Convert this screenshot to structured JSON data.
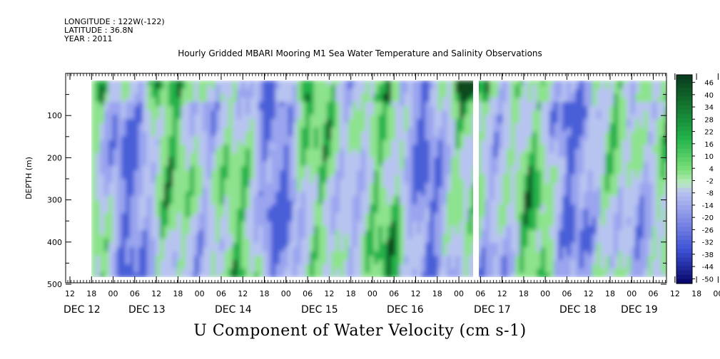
{
  "header": {
    "longitude": "LONGITUDE : 122W(-122)",
    "latitude": "LATITUDE : 36.8N",
    "year": "YEAR : 2011"
  },
  "chart_data": {
    "type": "heatmap",
    "title": "Hourly Gridded MBARI Mooring M1 Sea Water Temperature and Salinity Observations",
    "bottom_title": "U Component of Water Velocity (cm s-1)",
    "ylabel": "DEPTH (m)",
    "y_range": [
      500,
      0
    ],
    "y_ticks": [
      "100",
      "200",
      "300",
      "400",
      "500"
    ],
    "x_hour_ticks": [
      "12",
      "18",
      "00",
      "06",
      "12",
      "18",
      "00",
      "06",
      "12",
      "18",
      "00",
      "06",
      "12",
      "18",
      "00",
      "06",
      "12",
      "18",
      "00",
      "06",
      "12",
      "18",
      "00",
      "06",
      "12",
      "18",
      "00",
      "06",
      "12",
      "18",
      "00",
      "06"
    ],
    "x_date_labels": [
      "DEC 12",
      "DEC 13",
      "DEC 14",
      "DEC 15",
      "DEC 16",
      "DEC 17",
      "DEC 18",
      "DEC 19"
    ],
    "colorbar": {
      "labels": [
        "46",
        "40",
        "34",
        "28",
        "22",
        "16",
        "10",
        "4",
        "-2",
        "-8",
        "-14",
        "-20",
        "-26",
        "-32",
        "-38",
        "-44",
        "-50"
      ],
      "colors": {
        "strong_positive": "#0b4a1e",
        "positive": "#22b24a",
        "weak_positive": "#8de38d",
        "zero": "#b8c4f0",
        "weak_negative": "#9aa4ef",
        "negative": "#4a5ed8",
        "strong_negative": "#0a0a70"
      }
    },
    "data_gap": "DEC 17 06"
  }
}
